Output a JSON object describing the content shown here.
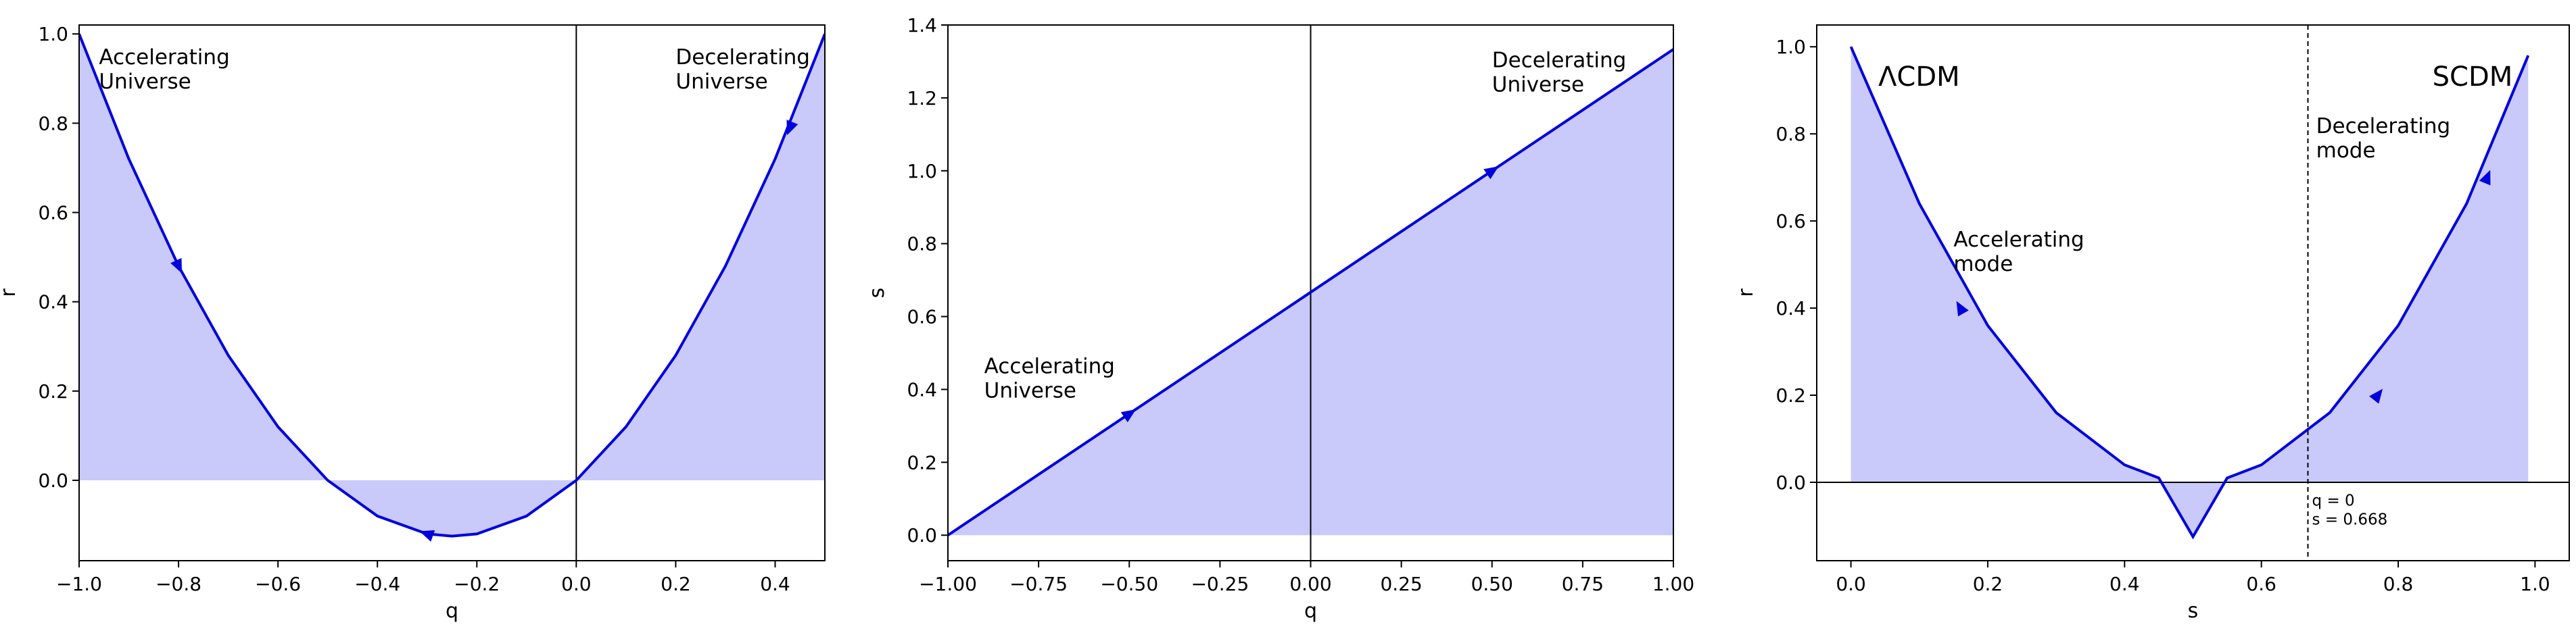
{
  "chart_data": [
    {
      "type": "area",
      "xlabel": "q",
      "ylabel": "r",
      "xlim": [
        -1.0,
        0.5
      ],
      "ylim": [
        -0.18,
        1.02
      ],
      "xticks": [
        -1.0,
        -0.8,
        -0.6,
        -0.4,
        -0.2,
        0.0,
        0.2,
        0.4
      ],
      "yticks": [
        0.0,
        0.2,
        0.4,
        0.6,
        0.8,
        1.0
      ],
      "xtick_labels": [
        "−1.0",
        "−0.8",
        "−0.6",
        "−0.4",
        "−0.2",
        "0.0",
        "0.2",
        "0.4"
      ],
      "ytick_labels": [
        "0.0",
        "0.2",
        "0.4",
        "0.6",
        "0.8",
        "1.0"
      ],
      "x": [
        -1.0,
        -0.9,
        -0.8,
        -0.7,
        -0.6,
        -0.5,
        -0.4,
        -0.3,
        -0.25,
        -0.2,
        -0.1,
        0.0,
        0.1,
        0.2,
        0.3,
        0.4,
        0.5
      ],
      "y": [
        1.0,
        0.72,
        0.48,
        0.28,
        0.12,
        0.0,
        -0.08,
        -0.12,
        -0.125,
        -0.12,
        -0.08,
        0.0,
        0.12,
        0.28,
        0.48,
        0.72,
        1.0
      ],
      "fill_to": 0.0,
      "vlines": [
        0.0
      ],
      "vline_style": "solid",
      "hline": null,
      "arrows": [
        {
          "x": -0.8,
          "y": 0.48,
          "toward": "x-increasing"
        },
        {
          "x": -0.3,
          "y": -0.12,
          "toward": "x-decreasing"
        },
        {
          "x": 0.43,
          "y": 0.79,
          "toward": "x-decreasing"
        }
      ],
      "annotations": [
        {
          "text": "Accelerating\nUniverse",
          "x": -0.96,
          "y": 0.97,
          "style": "normal"
        },
        {
          "text": "Decelerating\nUniverse",
          "x": 0.2,
          "y": 0.97,
          "style": "normal"
        }
      ],
      "color": "#0000dd",
      "fill_color": "#c9c9fa"
    },
    {
      "type": "area",
      "xlabel": "q",
      "ylabel": "s",
      "xlim": [
        -1.0,
        1.0
      ],
      "ylim": [
        -0.07,
        1.4
      ],
      "xticks": [
        -1.0,
        -0.75,
        -0.5,
        -0.25,
        0.0,
        0.25,
        0.5,
        0.75,
        1.0
      ],
      "yticks": [
        0.0,
        0.2,
        0.4,
        0.6,
        0.8,
        1.0,
        1.2,
        1.4
      ],
      "xtick_labels": [
        "−1.00",
        "−0.75",
        "−0.50",
        "−0.25",
        "0.00",
        "0.25",
        "0.50",
        "0.75",
        "1.00"
      ],
      "ytick_labels": [
        "0.0",
        "0.2",
        "0.4",
        "0.6",
        "0.8",
        "1.0",
        "1.2",
        "1.4"
      ],
      "x": [
        -1.0,
        1.0
      ],
      "y": [
        0.0,
        1.3333
      ],
      "fill_to": 0.0,
      "vlines": [
        0.0
      ],
      "vline_style": "solid",
      "hline": null,
      "arrows": [
        {
          "x": -0.5,
          "y": 0.333,
          "toward": "x-increasing"
        },
        {
          "x": 0.5,
          "y": 1.0,
          "toward": "x-increasing"
        }
      ],
      "annotations": [
        {
          "text": "Accelerating\nUniverse",
          "x": -0.9,
          "y": 0.49,
          "style": "normal"
        },
        {
          "text": "Decelerating\nUniverse",
          "x": 0.5,
          "y": 1.33,
          "style": "normal"
        }
      ],
      "color": "#0000dd",
      "fill_color": "#c9c9fa"
    },
    {
      "type": "area",
      "xlabel": "s",
      "ylabel": "r",
      "xlim": [
        -0.05,
        1.05
      ],
      "ylim": [
        -0.18,
        1.05
      ],
      "xticks": [
        0.0,
        0.2,
        0.4,
        0.6,
        0.8,
        1.0
      ],
      "yticks": [
        0.0,
        0.2,
        0.4,
        0.6,
        0.8,
        1.0
      ],
      "xtick_labels": [
        "0.0",
        "0.2",
        "0.4",
        "0.6",
        "0.8",
        "1.0"
      ],
      "ytick_labels": [
        "0.0",
        "0.2",
        "0.4",
        "0.6",
        "0.8",
        "1.0"
      ],
      "x": [
        0.0,
        0.1,
        0.2,
        0.3,
        0.4,
        0.45,
        0.5,
        0.55,
        0.6,
        0.7,
        0.8,
        0.9,
        0.99
      ],
      "y": [
        1.0,
        0.64,
        0.36,
        0.16,
        0.04,
        0.01,
        -0.125,
        0.01,
        0.04,
        0.16,
        0.36,
        0.64,
        0.98
      ],
      "fill_to": 0.0,
      "vlines": [
        0.668
      ],
      "vline_style": "dashed",
      "hline": 0.0,
      "arrows": [
        {
          "x": 0.16,
          "y": 0.4,
          "toward": "x-decreasing"
        },
        {
          "x": 0.77,
          "y": 0.2,
          "toward": "x-increasing"
        },
        {
          "x": 0.93,
          "y": 0.7,
          "toward": "x-increasing"
        }
      ],
      "annotations": [
        {
          "text": "ΛCDM",
          "x": 0.04,
          "y": 0.96,
          "style": "big"
        },
        {
          "text": "SCDM",
          "x": 0.85,
          "y": 0.96,
          "style": "big"
        },
        {
          "text": "Decelerating\nmode",
          "x": 0.68,
          "y": 0.84,
          "style": "normal"
        },
        {
          "text": "Accelerating\nmode",
          "x": 0.15,
          "y": 0.58,
          "style": "normal"
        },
        {
          "text": "q = 0\ns = 0.668",
          "x": 0.674,
          "y": -0.025,
          "style": "small"
        }
      ],
      "color": "#0000dd",
      "fill_color": "#c9c9fa"
    }
  ]
}
